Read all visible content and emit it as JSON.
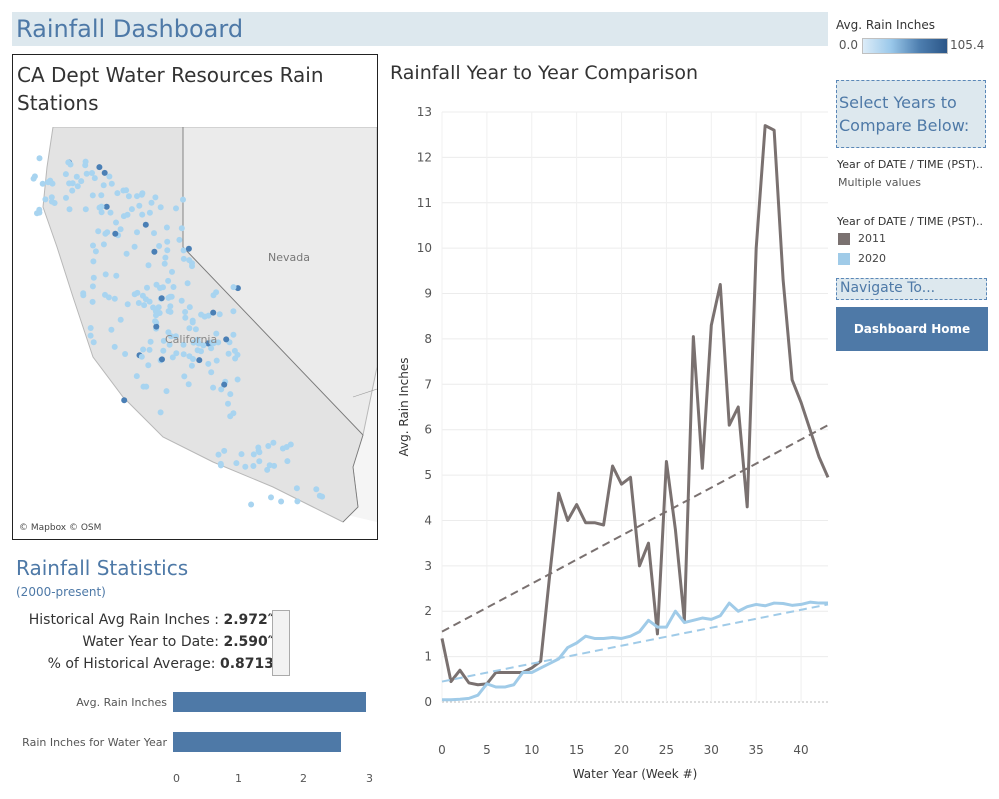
{
  "header": {
    "title": "Rainfall Dashboard"
  },
  "color_legend": {
    "title": "Avg. Rain Inches",
    "min": "0.0",
    "max": "105.4"
  },
  "map": {
    "title": "CA Dept Water Resources Rain Stations",
    "state_label": "Nevada",
    "ca_label": "California",
    "attribution": "© Mapbox © OSM"
  },
  "stats": {
    "title": "Rainfall Statistics",
    "subtitle": "(2000-present)",
    "rows": [
      {
        "label": "Historical Avg Rain Inches : ",
        "value": "2.972″"
      },
      {
        "label": "Water Year to Date: ",
        "value": "2.590″"
      },
      {
        "label": "% of Historical Average: ",
        "value": "0.8713"
      }
    ]
  },
  "bar_chart": {
    "categories": [
      "Avg. Rain Inches",
      "Rain Inches for Water Year"
    ],
    "values": [
      2.972,
      2.59
    ],
    "ticks": [
      "0",
      "1",
      "2",
      "3"
    ],
    "xlim": [
      0,
      3
    ]
  },
  "chart_data": {
    "type": "line",
    "title": "Rainfall Year to Year Comparison",
    "xlabel": "Water Year (Week #)",
    "ylabel": "Avg. Rain Inches",
    "xlim": [
      0,
      43
    ],
    "ylim": [
      0,
      13
    ],
    "x_ticks": [
      0,
      5,
      10,
      15,
      20,
      25,
      30,
      35,
      40
    ],
    "y_ticks": [
      0,
      1,
      2,
      3,
      4,
      5,
      6,
      7,
      8,
      9,
      10,
      11,
      12,
      13
    ],
    "series": [
      {
        "name": "2011",
        "color": "#7a7170",
        "x": [
          0,
          1,
          2,
          3,
          4,
          5,
          6,
          7,
          8,
          9,
          10,
          11,
          12,
          13,
          14,
          15,
          16,
          17,
          18,
          19,
          20,
          21,
          22,
          23,
          24,
          25,
          26,
          27,
          28,
          29,
          30,
          31,
          32,
          33,
          34,
          35,
          36,
          37,
          38,
          39,
          40,
          41,
          42,
          43
        ],
        "values": [
          1.4,
          0.45,
          0.7,
          0.42,
          0.38,
          0.4,
          0.65,
          0.65,
          0.65,
          0.65,
          0.75,
          0.9,
          2.8,
          4.6,
          4.0,
          4.35,
          3.95,
          3.95,
          3.9,
          5.2,
          4.8,
          4.95,
          3.0,
          3.5,
          1.5,
          5.3,
          3.8,
          1.8,
          8.05,
          5.15,
          8.3,
          9.2,
          6.1,
          6.5,
          4.3,
          10.0,
          12.7,
          12.6,
          9.3,
          7.1,
          6.6,
          6.0,
          5.4,
          4.95
        ],
        "trend": [
          1.55,
          6.1
        ]
      },
      {
        "name": "2020",
        "color": "#a0cbe8",
        "x": [
          0,
          1,
          2,
          3,
          4,
          5,
          6,
          7,
          8,
          9,
          10,
          11,
          12,
          13,
          14,
          15,
          16,
          17,
          18,
          19,
          20,
          21,
          22,
          23,
          24,
          25,
          26,
          27,
          28,
          29,
          30,
          31,
          32,
          33,
          34,
          35,
          36,
          37,
          38,
          39,
          40,
          41,
          42,
          43
        ],
        "values": [
          0.05,
          0.05,
          0.06,
          0.08,
          0.15,
          0.4,
          0.33,
          0.33,
          0.38,
          0.65,
          0.65,
          0.75,
          0.85,
          0.95,
          1.2,
          1.3,
          1.45,
          1.4,
          1.4,
          1.42,
          1.4,
          1.45,
          1.55,
          1.8,
          1.65,
          1.65,
          2.0,
          1.75,
          1.8,
          1.85,
          1.82,
          1.9,
          2.18,
          2.0,
          2.1,
          2.15,
          2.12,
          2.18,
          2.17,
          2.13,
          2.15,
          2.2,
          2.18,
          2.18
        ],
        "trend": [
          0.45,
          2.15
        ]
      }
    ]
  },
  "controls": {
    "select_years_text": "Select Years to Compare Below:",
    "filter1_label": "Year of DATE / TIME (PST)..",
    "filter1_value": "Multiple values",
    "filter2_label": "Year of DATE / TIME (PST)..",
    "years": [
      {
        "label": "2011",
        "color": "#7a7170"
      },
      {
        "label": "2020",
        "color": "#a0cbe8"
      }
    ],
    "navigate_text": "Navigate To...",
    "home_button": "Dashboard Home"
  }
}
